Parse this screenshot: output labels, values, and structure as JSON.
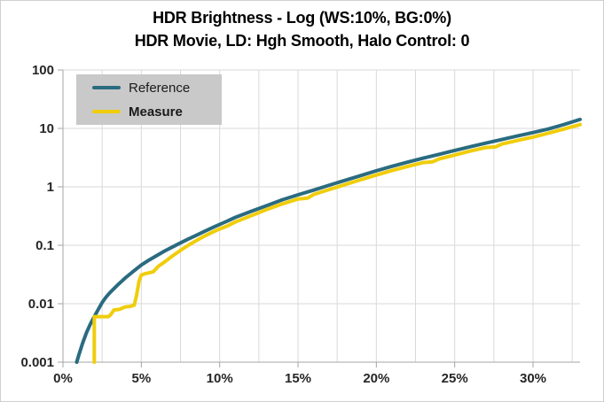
{
  "title": {
    "line1": "HDR Brightness - Log (WS:10%, BG:0%)",
    "line2": "HDR Movie, LD: Hgh Smooth, Halo Control: 0"
  },
  "legend": {
    "items": [
      {
        "label": "Reference",
        "bold": false,
        "color": "#2a6b80"
      },
      {
        "label": "Measure",
        "bold": true,
        "color": "#f0cd0b"
      }
    ],
    "background": "#c9c9c9",
    "position": "top-left"
  },
  "colors": {
    "gridline": "#d9d9d9",
    "axis_line": "#a6a6a6",
    "tick_label": "#262626",
    "reference_line": "#2a6b80",
    "measure_line": "#f0cd0b"
  },
  "chart_data": {
    "type": "line",
    "title": "HDR Brightness - Log (WS:10%, BG:0%)",
    "subtitle": "HDR Movie, LD: Hgh Smooth, Halo Control: 0",
    "grid": true,
    "legend_position": "top-left",
    "x_axis": {
      "label": "",
      "unit": "%",
      "min": 0,
      "max": 33,
      "tick_step": 5,
      "gridline_step": 2.5,
      "tick_values": [
        0,
        5,
        10,
        15,
        20,
        25,
        30
      ],
      "tick_labels": [
        "0%",
        "5%",
        "10%",
        "15%",
        "20%",
        "25%",
        "30%"
      ]
    },
    "y_axis": {
      "label": "",
      "scale": "log",
      "min": 0.001,
      "max": 100,
      "tick_values": [
        100,
        10,
        1,
        0.1,
        0.01,
        0.001
      ],
      "tick_labels": [
        "100",
        "10",
        "1",
        "0.1",
        "0.01",
        "0.001"
      ]
    },
    "series": [
      {
        "name": "Reference",
        "color": "#2a6b80",
        "points": [
          [
            0.88,
            0.001
          ],
          [
            1.0,
            0.0013
          ],
          [
            1.25,
            0.0021
          ],
          [
            1.5,
            0.0032
          ],
          [
            1.75,
            0.0045
          ],
          [
            2.0,
            0.006
          ],
          [
            2.25,
            0.008
          ],
          [
            2.5,
            0.0105
          ],
          [
            2.75,
            0.013
          ],
          [
            3.0,
            0.0155
          ],
          [
            3.5,
            0.021
          ],
          [
            4.0,
            0.028
          ],
          [
            4.5,
            0.036
          ],
          [
            5.0,
            0.046
          ],
          [
            5.5,
            0.056
          ],
          [
            6.0,
            0.067
          ],
          [
            6.5,
            0.08
          ],
          [
            7.0,
            0.094
          ],
          [
            7.5,
            0.11
          ],
          [
            8.0,
            0.128
          ],
          [
            8.5,
            0.148
          ],
          [
            9.0,
            0.171
          ],
          [
            9.5,
            0.198
          ],
          [
            10,
            0.228
          ],
          [
            10.5,
            0.26
          ],
          [
            11,
            0.3
          ],
          [
            12,
            0.38
          ],
          [
            13,
            0.475
          ],
          [
            14,
            0.6
          ],
          [
            15,
            0.73
          ],
          [
            16,
            0.88
          ],
          [
            17,
            1.07
          ],
          [
            18,
            1.29
          ],
          [
            19,
            1.56
          ],
          [
            20,
            1.88
          ],
          [
            21,
            2.25
          ],
          [
            22,
            2.65
          ],
          [
            23,
            3.1
          ],
          [
            24,
            3.6
          ],
          [
            25,
            4.2
          ],
          [
            26,
            4.85
          ],
          [
            27,
            5.6
          ],
          [
            28,
            6.45
          ],
          [
            29,
            7.4
          ],
          [
            30,
            8.5
          ],
          [
            31,
            9.8
          ],
          [
            32,
            11.7
          ],
          [
            33,
            14.2
          ]
        ]
      },
      {
        "name": "Measure",
        "color": "#f0cd0b",
        "points": [
          [
            2.0,
            0.001
          ],
          [
            2.0,
            0.006
          ],
          [
            2.4,
            0.006
          ],
          [
            2.9,
            0.006
          ],
          [
            3.05,
            0.0065
          ],
          [
            3.25,
            0.0078
          ],
          [
            3.6,
            0.008
          ],
          [
            3.95,
            0.0088
          ],
          [
            4.3,
            0.009
          ],
          [
            4.55,
            0.0095
          ],
          [
            4.7,
            0.014
          ],
          [
            4.85,
            0.024
          ],
          [
            5.0,
            0.031
          ],
          [
            5.3,
            0.033
          ],
          [
            5.75,
            0.035
          ],
          [
            6.1,
            0.044
          ],
          [
            6.5,
            0.052
          ],
          [
            7.0,
            0.066
          ],
          [
            7.5,
            0.082
          ],
          [
            8.0,
            0.1
          ],
          [
            8.5,
            0.12
          ],
          [
            9.0,
            0.142
          ],
          [
            9.5,
            0.165
          ],
          [
            10,
            0.19
          ],
          [
            10.5,
            0.215
          ],
          [
            11,
            0.25
          ],
          [
            12,
            0.32
          ],
          [
            13,
            0.41
          ],
          [
            14,
            0.51
          ],
          [
            15,
            0.62
          ],
          [
            15.6,
            0.64
          ],
          [
            16,
            0.74
          ],
          [
            17,
            0.9
          ],
          [
            18,
            1.09
          ],
          [
            19,
            1.32
          ],
          [
            20,
            1.59
          ],
          [
            21,
            1.9
          ],
          [
            22,
            2.24
          ],
          [
            23,
            2.6
          ],
          [
            23.6,
            2.68
          ],
          [
            24,
            3.0
          ],
          [
            25,
            3.5
          ],
          [
            26,
            4.1
          ],
          [
            27,
            4.7
          ],
          [
            27.6,
            4.82
          ],
          [
            28,
            5.4
          ],
          [
            29,
            6.2
          ],
          [
            30,
            7.1
          ],
          [
            31,
            8.3
          ],
          [
            32,
            9.8
          ],
          [
            33,
            11.6
          ]
        ]
      }
    ]
  }
}
